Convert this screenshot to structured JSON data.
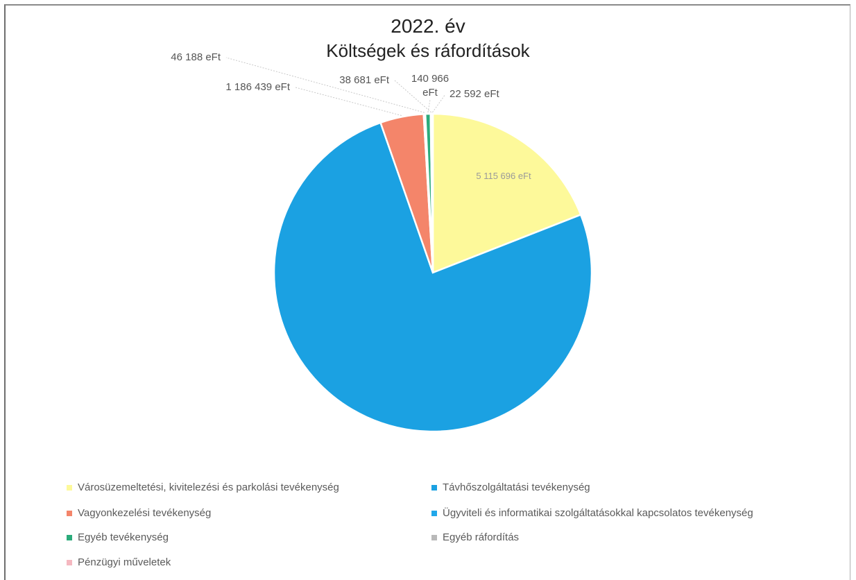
{
  "chart_data": {
    "type": "pie",
    "title": "2022. év",
    "subtitle": "Költségek és ráfordítások",
    "unit": "eFt",
    "slices": [
      {
        "label": "Városüzemeltetési, kivitelezési és parkolási tevékenység",
        "value": 5115696,
        "value_label": "5 115 696 eFt",
        "color": "#fdf99a"
      },
      {
        "label": "Távhőszolgáltatási tevékenység",
        "value": 20300000,
        "value_label": "",
        "color": "#1ba1e2"
      },
      {
        "label": "Vagyonkezelési tevékenység",
        "value": 1186439,
        "value_label": "1 186 439 eFt",
        "color": "#f4856a"
      },
      {
        "label": "Ügyviteli és informatikai szolgáltatásokkal kapcsolatos tevékenység",
        "value": 46188,
        "value_label": "46 188 eFt",
        "color": "#21a7ea"
      },
      {
        "label": "Egyéb tevékenység",
        "value": 140966,
        "value_label": "140 966 eFt",
        "color": "#2bab7b"
      },
      {
        "label": "Egyéb ráfordítás",
        "value": 38681,
        "value_label": "38 681 eFt",
        "color": "#b9b9b9"
      },
      {
        "label": "Pénzügyi műveletek",
        "value": 22592,
        "value_label": "22 592 eFt",
        "color": "#f5b8c0"
      }
    ],
    "legend_position": "bottom"
  }
}
